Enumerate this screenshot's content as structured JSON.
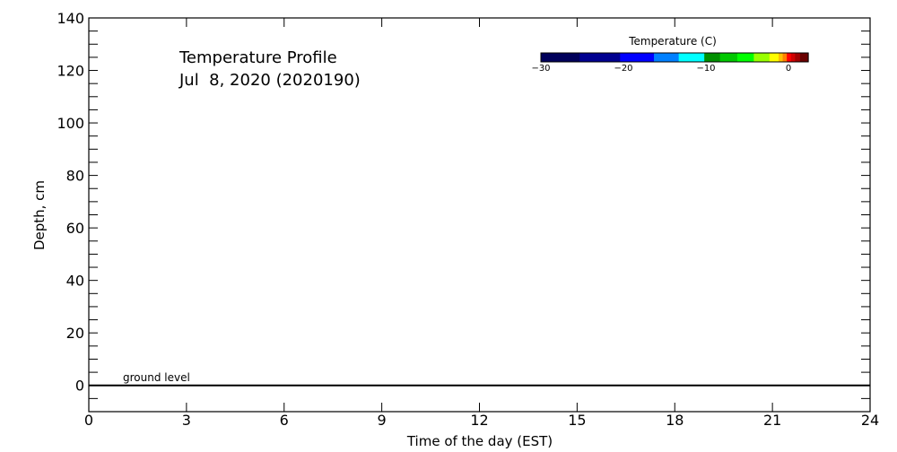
{
  "chart_data": {
    "type": "heatmap",
    "title": "Temperature Profile",
    "subtitle": "Jul  8, 2020 (2020190)",
    "xlabel": "Time of the day (EST)",
    "ylabel": "Depth, cm",
    "xlim": [
      0,
      24
    ],
    "ylim": [
      -10,
      140
    ],
    "xticks": [
      0,
      3,
      6,
      9,
      12,
      15,
      18,
      21,
      24
    ],
    "yticks": [
      0,
      20,
      40,
      60,
      80,
      100,
      120,
      140
    ],
    "grid": false,
    "annotation": {
      "text": "ground level",
      "depth": 0
    },
    "values": [],
    "colorbar": {
      "title": "Temperature (C)",
      "position": "top-right",
      "ticks": [
        -30,
        -20,
        -10,
        0
      ],
      "tick_labels": [
        "-30",
        "-20",
        "-10",
        "0"
      ],
      "range": [
        -30,
        2.4
      ],
      "bounds": [
        -30,
        -25.3,
        -20.4,
        -16.3,
        -13.3,
        -10.2,
        -8.3,
        -6.2,
        -4.2,
        -2.3,
        -1.2,
        -0.7,
        -0.2,
        0.3,
        0.8,
        1.4,
        2.4
      ],
      "colors": [
        "#00005a",
        "#000090",
        "#0000ff",
        "#0080ff",
        "#00ffff",
        "#009000",
        "#00c800",
        "#00ff00",
        "#99ff00",
        "#ffff00",
        "#ffc000",
        "#ff8000",
        "#ff0000",
        "#d00000",
        "#a00000",
        "#6a0000"
      ]
    }
  }
}
